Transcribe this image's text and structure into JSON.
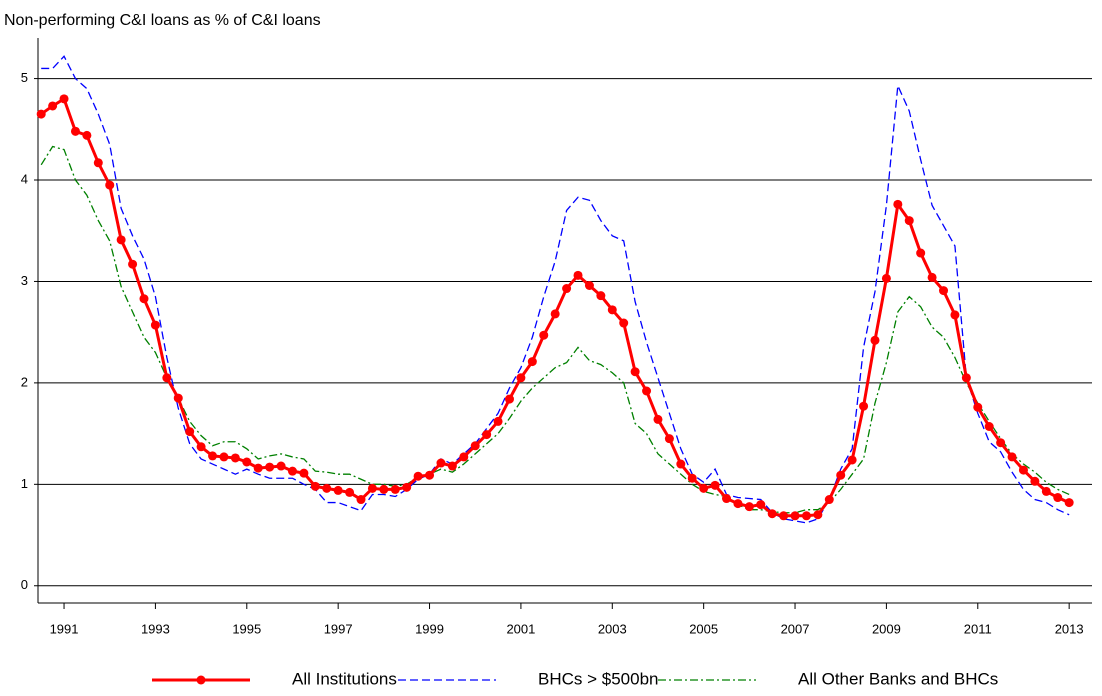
{
  "chart_data": {
    "type": "line",
    "title": "Non-performing C&I loans as % of C&I loans",
    "x": [
      1990.5,
      1990.75,
      1991,
      1991.25,
      1991.5,
      1991.75,
      1992,
      1992.25,
      1992.5,
      1992.75,
      1993,
      1993.25,
      1993.5,
      1993.75,
      1994,
      1994.25,
      1994.5,
      1994.75,
      1995,
      1995.25,
      1995.5,
      1995.75,
      1996,
      1996.25,
      1996.5,
      1996.75,
      1997,
      1997.25,
      1997.5,
      1997.75,
      1998,
      1998.25,
      1998.5,
      1998.75,
      1999,
      1999.25,
      1999.5,
      1999.75,
      2000,
      2000.25,
      2000.5,
      2000.75,
      2001,
      2001.25,
      2001.5,
      2001.75,
      2002,
      2002.25,
      2002.5,
      2002.75,
      2003,
      2003.25,
      2003.5,
      2003.75,
      2004,
      2004.25,
      2004.5,
      2004.75,
      2005,
      2005.25,
      2005.5,
      2005.75,
      2006,
      2006.25,
      2006.5,
      2006.75,
      2007,
      2007.25,
      2007.5,
      2007.75,
      2008,
      2008.25,
      2008.5,
      2008.75,
      2009,
      2009.25,
      2009.5,
      2009.75,
      2010,
      2010.25,
      2010.5,
      2010.75,
      2011,
      2011.25,
      2011.5,
      2011.75,
      2012,
      2012.25,
      2012.5,
      2012.75,
      2013
    ],
    "series": [
      {
        "name": "All Institutions",
        "color": "#ff0000",
        "style": "solid-dots",
        "values": [
          4.65,
          4.73,
          4.8,
          4.48,
          4.44,
          4.17,
          3.95,
          3.41,
          3.17,
          2.83,
          2.57,
          2.05,
          1.85,
          1.52,
          1.37,
          1.28,
          1.27,
          1.26,
          1.22,
          1.16,
          1.17,
          1.18,
          1.13,
          1.11,
          0.98,
          0.96,
          0.94,
          0.92,
          0.85,
          0.96,
          0.95,
          0.95,
          0.97,
          1.08,
          1.09,
          1.21,
          1.18,
          1.27,
          1.38,
          1.49,
          1.62,
          1.84,
          2.05,
          2.21,
          2.47,
          2.68,
          2.93,
          3.06,
          2.96,
          2.86,
          2.72,
          2.59,
          2.11,
          1.92,
          1.64,
          1.45,
          1.2,
          1.06,
          0.96,
          0.99,
          0.86,
          0.81,
          0.78,
          0.8,
          0.71,
          0.69,
          0.69,
          0.69,
          0.7,
          0.85,
          1.09,
          1.24,
          1.77,
          2.42,
          3.03,
          3.76,
          3.6,
          3.28,
          3.04,
          2.91,
          2.67,
          2.05,
          1.76,
          1.57,
          1.41,
          1.27,
          1.14,
          1.03,
          0.93,
          0.87,
          0.82
        ]
      },
      {
        "name": "BHCs > $500bn",
        "color": "#0000ff",
        "style": "dashed",
        "values": [
          5.1,
          5.1,
          5.22,
          5.0,
          4.9,
          4.65,
          4.35,
          3.72,
          3.45,
          3.22,
          2.85,
          2.25,
          1.75,
          1.4,
          1.25,
          1.2,
          1.15,
          1.1,
          1.15,
          1.1,
          1.06,
          1.06,
          1.06,
          1.0,
          0.95,
          0.82,
          0.82,
          0.78,
          0.74,
          0.9,
          0.9,
          0.88,
          0.95,
          1.05,
          1.1,
          1.25,
          1.2,
          1.3,
          1.4,
          1.55,
          1.7,
          1.95,
          2.15,
          2.45,
          2.85,
          3.2,
          3.7,
          3.83,
          3.8,
          3.6,
          3.45,
          3.4,
          2.8,
          2.4,
          2.05,
          1.7,
          1.35,
          1.1,
          1.02,
          1.15,
          0.9,
          0.87,
          0.86,
          0.85,
          0.72,
          0.66,
          0.64,
          0.62,
          0.66,
          0.85,
          1.15,
          1.35,
          2.35,
          2.9,
          3.75,
          4.93,
          4.68,
          4.2,
          3.75,
          3.55,
          3.35,
          2.05,
          1.7,
          1.42,
          1.32,
          1.12,
          0.95,
          0.85,
          0.82,
          0.75,
          0.7
        ]
      },
      {
        "name": "All Other Banks and BHCs",
        "color": "#008000",
        "style": "dashdot",
        "values": [
          4.15,
          4.33,
          4.3,
          4.0,
          3.85,
          3.6,
          3.4,
          2.95,
          2.7,
          2.45,
          2.3,
          2.05,
          1.85,
          1.62,
          1.48,
          1.38,
          1.42,
          1.42,
          1.35,
          1.25,
          1.28,
          1.3,
          1.27,
          1.25,
          1.13,
          1.12,
          1.1,
          1.1,
          1.05,
          1.0,
          1.0,
          0.98,
          1.0,
          1.07,
          1.1,
          1.15,
          1.12,
          1.2,
          1.3,
          1.4,
          1.5,
          1.65,
          1.82,
          1.95,
          2.05,
          2.15,
          2.2,
          2.35,
          2.22,
          2.18,
          2.1,
          2.0,
          1.6,
          1.5,
          1.3,
          1.2,
          1.1,
          1.0,
          0.93,
          0.9,
          0.88,
          0.8,
          0.75,
          0.75,
          0.73,
          0.72,
          0.72,
          0.75,
          0.75,
          0.82,
          0.95,
          1.1,
          1.25,
          1.8,
          2.2,
          2.7,
          2.85,
          2.75,
          2.55,
          2.45,
          2.25,
          2.0,
          1.8,
          1.62,
          1.45,
          1.3,
          1.2,
          1.12,
          1.02,
          0.95,
          0.9
        ]
      }
    ],
    "xlim": [
      1990.43,
      2013.5
    ],
    "xticks": [
      1991,
      1993,
      1995,
      1997,
      1999,
      2001,
      2003,
      2005,
      2007,
      2009,
      2011,
      2013
    ],
    "ylim": [
      -0.17,
      5.4
    ],
    "yticks": [
      0,
      1,
      2,
      3,
      4,
      5
    ],
    "grid": true,
    "legend": "bottom"
  }
}
